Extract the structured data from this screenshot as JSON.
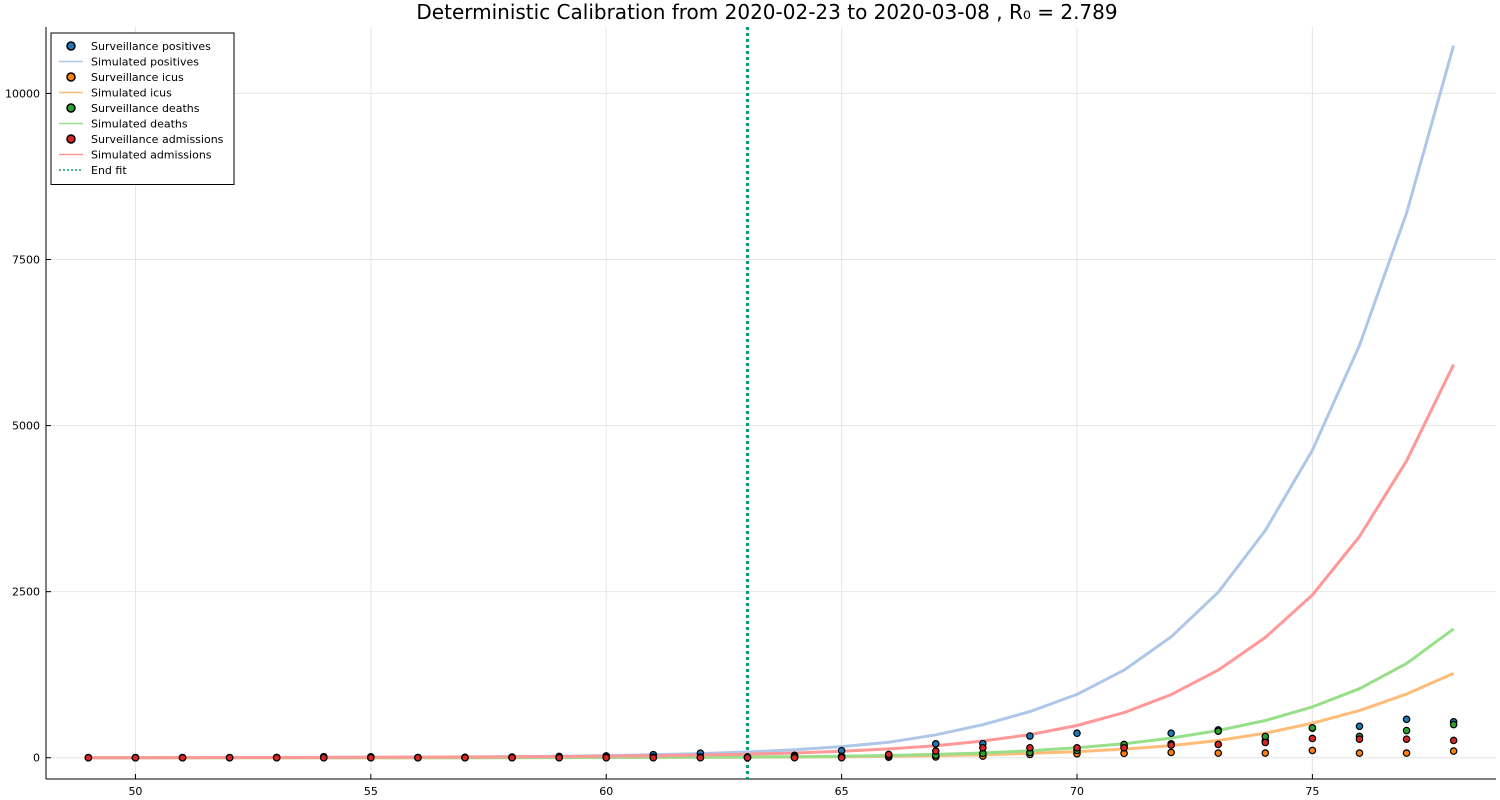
{
  "chart_data": {
    "type": "line",
    "title": "Deterministic Calibration from 2020-02-23 to 2020-03-08 , R₀ = 2.789",
    "xlabel": "",
    "ylabel": "",
    "xlim": [
      48.1,
      78.9
    ],
    "ylim": [
      -320,
      11000
    ],
    "x_ticks": [
      50,
      55,
      60,
      65,
      70,
      75
    ],
    "y_ticks": [
      0,
      2500,
      5000,
      7500,
      10000
    ],
    "grid": true,
    "legend_position": "top-left",
    "end_fit_x": 63,
    "x": [
      49,
      50,
      51,
      52,
      53,
      54,
      55,
      56,
      57,
      58,
      59,
      60,
      61,
      62,
      63,
      64,
      65,
      66,
      67,
      68,
      69,
      70,
      71,
      72,
      73,
      74,
      75,
      76,
      77,
      78
    ],
    "series": [
      {
        "name": "Surveillance positives",
        "kind": "scatter",
        "color": "#1f77b4",
        "values": [
          3,
          3,
          3,
          3,
          5,
          17,
          14,
          3,
          7,
          10,
          19,
          27,
          47,
          69,
          5,
          36,
          107,
          29,
          210,
          212,
          327,
          369,
          170,
          369,
          419,
          254,
          444,
          474,
          578,
          541
        ]
      },
      {
        "name": "Simulated positives",
        "kind": "line",
        "color": "#aec7e8",
        "values": [
          1,
          1,
          2,
          3,
          4,
          5,
          7,
          9,
          12,
          17,
          23,
          32,
          45,
          62,
          86,
          120,
          167,
          233,
          345,
          497,
          694,
          953,
          1320,
          1820,
          2490,
          3420,
          4630,
          6210,
          8200,
          10720
        ]
      },
      {
        "name": "Surveillance icus",
        "kind": "scatter",
        "color": "#ff7f0e",
        "values": [
          0,
          0,
          0,
          0,
          0,
          0,
          0,
          0,
          0,
          0,
          0,
          0,
          1,
          2,
          2,
          5,
          5,
          8,
          12,
          25,
          50,
          60,
          66,
          80,
          70,
          70,
          110,
          70,
          70,
          100
        ]
      },
      {
        "name": "Simulated icus",
        "kind": "line",
        "color": "#ffbb78",
        "values": [
          0,
          0,
          0,
          0,
          0,
          0,
          1,
          1,
          1,
          2,
          2,
          3,
          4,
          6,
          8,
          11,
          15,
          22,
          32,
          46,
          66,
          92,
          130,
          183,
          260,
          370,
          520,
          710,
          960,
          1270
        ]
      },
      {
        "name": "Surveillance deaths",
        "kind": "scatter",
        "color": "#2ca02c",
        "values": [
          0,
          0,
          0,
          0,
          1,
          1,
          2,
          3,
          3,
          3,
          5,
          6,
          8,
          10,
          12,
          17,
          21,
          27,
          37,
          66,
          80,
          110,
          200,
          210,
          400,
          320,
          450,
          320,
          410,
          500
        ]
      },
      {
        "name": "Simulated deaths",
        "kind": "line",
        "color": "#98df8a",
        "values": [
          0,
          0,
          0,
          0,
          0,
          0,
          1,
          1,
          1,
          2,
          3,
          4,
          6,
          8,
          11,
          16,
          23,
          34,
          50,
          72,
          104,
          150,
          212,
          295,
          410,
          560,
          765,
          1040,
          1420,
          1940
        ]
      },
      {
        "name": "Surveillance admissions",
        "kind": "scatter",
        "color": "#d62728",
        "values": [
          0,
          0,
          0,
          0,
          0,
          0,
          0,
          0,
          0,
          0,
          0,
          0,
          0,
          0,
          0,
          0,
          0,
          50,
          100,
          150,
          150,
          150,
          150,
          190,
          200,
          230,
          290,
          280,
          280,
          260
        ]
      },
      {
        "name": "Simulated admissions",
        "kind": "line",
        "color": "#ff9896",
        "values": [
          1,
          1,
          2,
          3,
          4,
          5,
          7,
          9,
          11,
          14,
          18,
          24,
          31,
          41,
          54,
          72,
          97,
          133,
          182,
          252,
          348,
          485,
          680,
          950,
          1320,
          1810,
          2450,
          3330,
          4470,
          5920
        ]
      }
    ]
  },
  "legend": {
    "items": [
      {
        "label": "Surveillance positives",
        "kind": "marker",
        "color": "#1f77b4"
      },
      {
        "label": "Simulated positives",
        "kind": "line",
        "color": "#aec7e8"
      },
      {
        "label": "Surveillance icus",
        "kind": "marker",
        "color": "#ff7f0e"
      },
      {
        "label": "Simulated icus",
        "kind": "line",
        "color": "#ffbb78"
      },
      {
        "label": "Surveillance deaths",
        "kind": "marker",
        "color": "#2ca02c"
      },
      {
        "label": "Simulated deaths",
        "kind": "line",
        "color": "#98df8a"
      },
      {
        "label": "Surveillance admissions",
        "kind": "marker",
        "color": "#d62728"
      },
      {
        "label": "Simulated admissions",
        "kind": "line",
        "color": "#ff9896"
      },
      {
        "label": "End fit",
        "kind": "dotted",
        "color": "#009e73"
      }
    ]
  }
}
